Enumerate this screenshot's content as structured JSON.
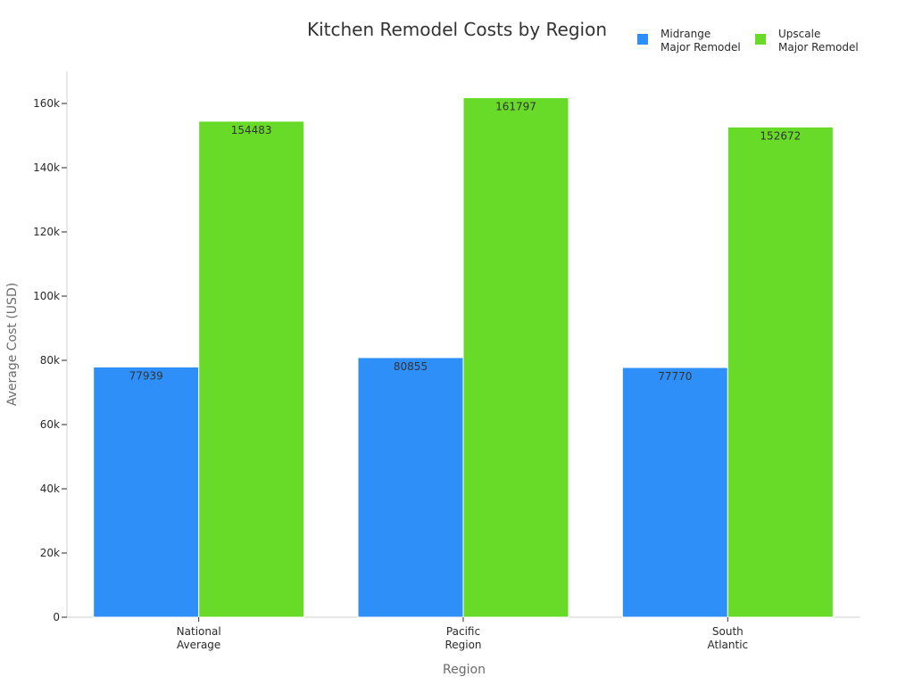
{
  "chart_data": {
    "type": "bar",
    "title": "Kitchen Remodel Costs by Region",
    "xlabel": "Region",
    "ylabel": "Average Cost (USD)",
    "categories": [
      [
        "National",
        "Average"
      ],
      [
        "Pacific",
        "Region"
      ],
      [
        "South",
        "Atlantic"
      ]
    ],
    "series": [
      {
        "name": [
          "Midrange",
          "Major Remodel"
        ],
        "color": "#2f8ff9",
        "values": [
          77939,
          80855,
          77770
        ]
      },
      {
        "name": [
          "Upscale",
          "Major Remodel"
        ],
        "color": "#67db27",
        "values": [
          154483,
          161797,
          152672
        ]
      }
    ],
    "ylim": [
      0,
      170000
    ],
    "yticks": [
      0,
      20000,
      40000,
      60000,
      80000,
      100000,
      120000,
      140000,
      160000
    ],
    "ytick_labels": [
      "0",
      "20k",
      "40k",
      "60k",
      "80k",
      "100k",
      "120k",
      "140k",
      "160k"
    ],
    "legend_position": "top-right",
    "grid": false
  }
}
